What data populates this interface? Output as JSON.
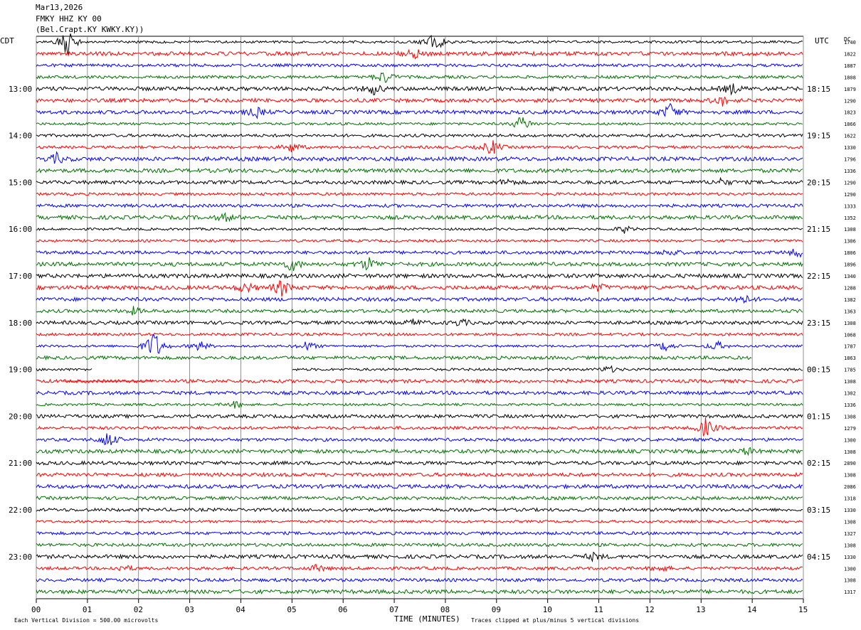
{
  "header": {
    "date": "Mar13,2026",
    "station": "FMKY HHZ KY 00",
    "location": "(Bel.Crapt.KY KWKY.KY))"
  },
  "labels": {
    "left_tz": "CDT",
    "right_tz": "UTC",
    "right_col_header": "DC"
  },
  "footer": {
    "scale_note": "Each Vertical Division =  500.00 microvolts",
    "xlabel": "TIME (MINUTES)",
    "clip_note": "Traces clipped at plus/minus 5 vertical divisions"
  },
  "chart_data": {
    "type": "line",
    "subtype": "helicorder",
    "xlabel": "TIME (MINUTES)",
    "xlim": [
      0,
      15
    ],
    "x_ticks": [
      "00",
      "01",
      "02",
      "03",
      "04",
      "05",
      "06",
      "07",
      "08",
      "09",
      "10",
      "11",
      "12",
      "13",
      "14",
      "15"
    ],
    "rows_per_hour": 4,
    "row_minutes": 15,
    "trace_colors": [
      "#000000",
      "#ff0000",
      "#0000ff",
      "#007000"
    ],
    "left_hour_labels": [
      "13:00",
      "14:00",
      "15:00",
      "16:00",
      "17:00",
      "18:00",
      "19:00",
      "20:00",
      "21:00",
      "22:00",
      "23:00"
    ],
    "right_hour_labels": [
      "18:15",
      "19:15",
      "20:15",
      "21:15",
      "22:15",
      "23:15",
      "00:15",
      "01:15",
      "02:15",
      "03:15",
      "04:15"
    ],
    "row_dc_values": [
      "1740",
      "1822",
      "1887",
      "1808",
      "1879",
      "1290",
      "1823",
      "1866",
      "1622",
      "1330",
      "1796",
      "1336",
      "1290",
      "1290",
      "1333",
      "1352",
      "1308",
      "1306",
      "1806",
      "1896",
      "1340",
      "1288",
      "1382",
      "1363",
      "1308",
      "1068",
      "1787",
      "1863",
      "1785",
      "1308",
      "1302",
      "1336",
      "1308",
      "1279",
      "1300",
      "1308",
      "2890",
      "1308",
      "2086",
      "1318",
      "1330",
      "1308",
      "1327",
      "1308",
      "1330",
      "1300",
      "1308",
      "1317"
    ],
    "events": [
      {
        "row": 0,
        "minute": 0.6,
        "amp": 8
      },
      {
        "row": 0,
        "minute": 7.8,
        "amp": 6
      },
      {
        "row": 1,
        "minute": 7.4,
        "amp": 3
      },
      {
        "row": 3,
        "minute": 6.8,
        "amp": 4
      },
      {
        "row": 4,
        "minute": 6.6,
        "amp": 3
      },
      {
        "row": 4,
        "minute": 13.6,
        "amp": 3
      },
      {
        "row": 5,
        "minute": 13.4,
        "amp": 3
      },
      {
        "row": 6,
        "minute": 4.3,
        "amp": 3
      },
      {
        "row": 6,
        "minute": 12.4,
        "amp": 5
      },
      {
        "row": 7,
        "minute": 9.5,
        "amp": 5
      },
      {
        "row": 9,
        "minute": 5.0,
        "amp": 3
      },
      {
        "row": 9,
        "minute": 8.9,
        "amp": 5
      },
      {
        "row": 10,
        "minute": 0.4,
        "amp": 3
      },
      {
        "row": 12,
        "minute": 9.2,
        "amp": 2
      },
      {
        "row": 12,
        "minute": 13.4,
        "amp": 2
      },
      {
        "row": 15,
        "minute": 3.7,
        "amp": 2
      },
      {
        "row": 16,
        "minute": 11.5,
        "amp": 2
      },
      {
        "row": 18,
        "minute": 12.4,
        "amp": 2
      },
      {
        "row": 18,
        "minute": 14.9,
        "amp": 3
      },
      {
        "row": 19,
        "minute": 5.0,
        "amp": 4
      },
      {
        "row": 19,
        "minute": 6.5,
        "amp": 4
      },
      {
        "row": 21,
        "minute": 4.1,
        "amp": 3
      },
      {
        "row": 21,
        "minute": 4.8,
        "amp": 5
      },
      {
        "row": 21,
        "minute": 11.0,
        "amp": 2
      },
      {
        "row": 22,
        "minute": 13.8,
        "amp": 3
      },
      {
        "row": 23,
        "minute": 1.9,
        "amp": 2
      },
      {
        "row": 24,
        "minute": 7.4,
        "amp": 2
      },
      {
        "row": 24,
        "minute": 8.3,
        "amp": 2
      },
      {
        "row": 26,
        "minute": 2.3,
        "amp": 10
      },
      {
        "row": 26,
        "minute": 3.2,
        "amp": 3
      },
      {
        "row": 26,
        "minute": 5.3,
        "amp": 3
      },
      {
        "row": 26,
        "minute": 12.3,
        "amp": 3
      },
      {
        "row": 26,
        "minute": 13.3,
        "amp": 3
      },
      {
        "row": 28,
        "minute": 11.2,
        "amp": 2
      },
      {
        "row": 31,
        "minute": 3.9,
        "amp": 2
      },
      {
        "row": 33,
        "minute": 13.1,
        "amp": 6
      },
      {
        "row": 34,
        "minute": 1.4,
        "amp": 5
      },
      {
        "row": 35,
        "minute": 13.9,
        "amp": 2
      },
      {
        "row": 44,
        "minute": 10.9,
        "amp": 2
      },
      {
        "row": 45,
        "minute": 1.7,
        "amp": 2
      },
      {
        "row": 45,
        "minute": 5.5,
        "amp": 2
      },
      {
        "row": 45,
        "minute": 12.2,
        "amp": 2
      }
    ],
    "data_gaps": [
      {
        "row": 27,
        "end_minute": 14.0
      },
      {
        "row": 28,
        "start_minute": 1.1,
        "end_minute": 5.0
      }
    ]
  }
}
